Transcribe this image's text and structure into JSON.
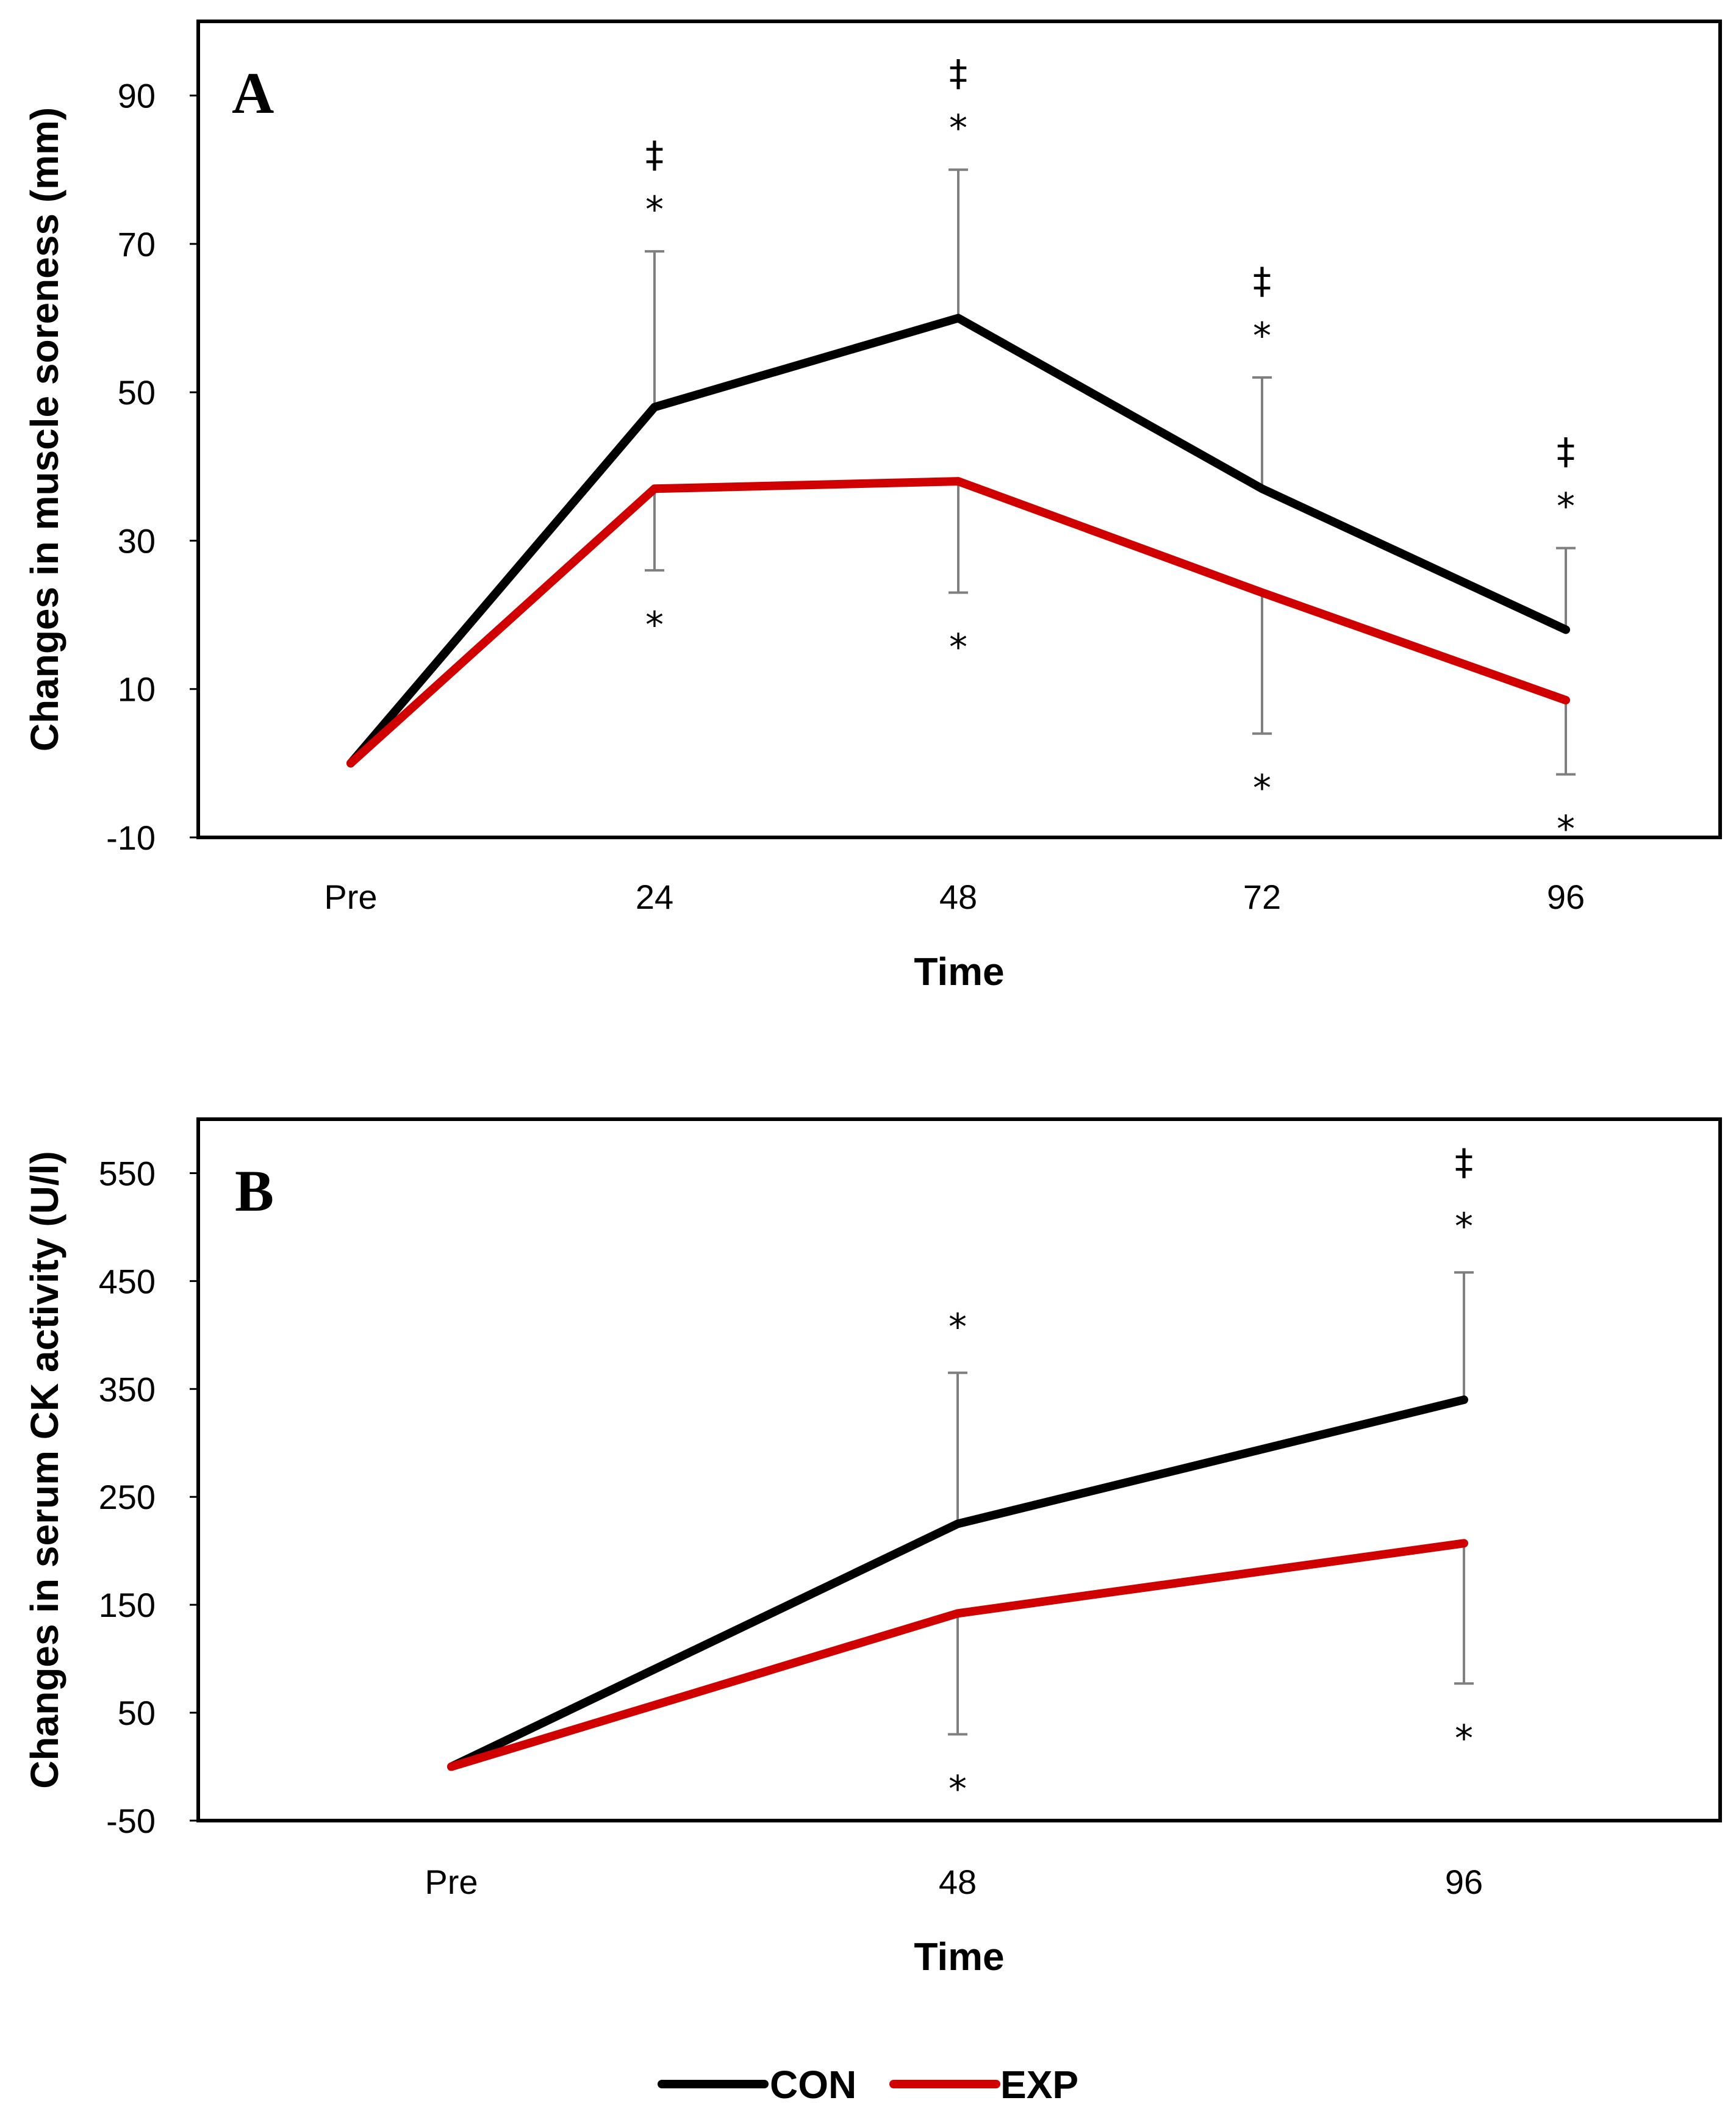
{
  "legend": [
    {
      "name": "CON",
      "color": "#000000"
    },
    {
      "name": "EXP",
      "color": "#d00000"
    }
  ],
  "chart_data": [
    {
      "type": "line",
      "panel": "A",
      "title": "",
      "xlabel": "Time",
      "ylabel": "Changes in muscle soreness (mm)",
      "categories": [
        "Pre",
        "24",
        "48",
        "72",
        "96"
      ],
      "ylim": [
        -10,
        100
      ],
      "yticks": [
        -10,
        10,
        30,
        50,
        70,
        90
      ],
      "grid": false,
      "legend_position": "bottom",
      "series": [
        {
          "name": "CON",
          "color": "#000000",
          "values": [
            0,
            48,
            60,
            37,
            18
          ],
          "error_up": [
            0,
            21,
            20,
            15,
            11
          ],
          "markers_above": [
            [],
            [
              "‡",
              "*"
            ],
            [
              "‡",
              "*"
            ],
            [
              "‡",
              "*"
            ],
            [
              "‡",
              "*"
            ]
          ]
        },
        {
          "name": "EXP",
          "color": "#d00000",
          "values": [
            0,
            37,
            38,
            23,
            8.5
          ],
          "error_down": [
            0,
            11,
            15,
            19,
            10
          ],
          "markers_below": [
            [],
            [
              "*"
            ],
            [
              "*"
            ],
            [
              "*"
            ],
            [
              "*"
            ]
          ]
        }
      ]
    },
    {
      "type": "line",
      "panel": "B",
      "title": "",
      "xlabel": "Time",
      "ylabel": "Changes in serum CK activity (U/l)",
      "categories": [
        "Pre",
        "48",
        "96"
      ],
      "ylim": [
        -50,
        600
      ],
      "yticks": [
        -50,
        50,
        150,
        250,
        350,
        450,
        550
      ],
      "grid": false,
      "legend_position": "bottom",
      "series": [
        {
          "name": "CON",
          "color": "#000000",
          "values": [
            0,
            225,
            340
          ],
          "error_up": [
            0,
            140,
            118
          ],
          "markers_above": [
            [],
            [
              "*"
            ],
            [
              "‡",
              "*"
            ]
          ]
        },
        {
          "name": "EXP",
          "color": "#d00000",
          "values": [
            0,
            142,
            207
          ],
          "error_down": [
            0,
            112,
            130
          ],
          "markers_below": [
            [],
            [
              "*"
            ],
            [
              "*"
            ]
          ]
        }
      ]
    }
  ]
}
